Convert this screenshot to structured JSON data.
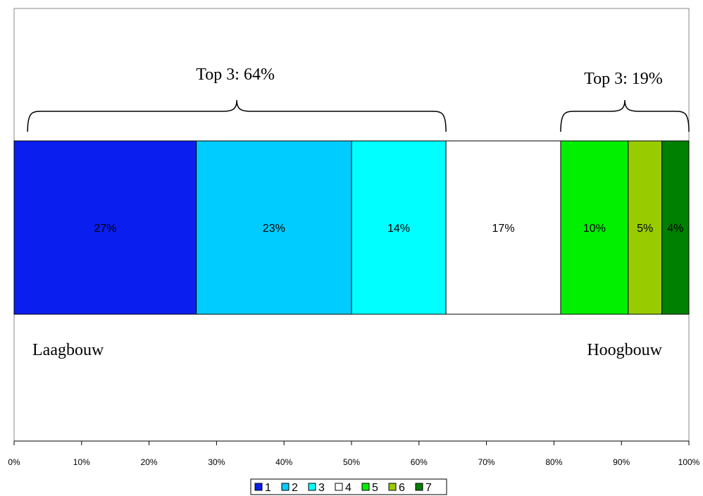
{
  "chart_data": {
    "type": "bar",
    "orientation": "horizontal",
    "stacked": "100%",
    "series": [
      {
        "name": "1",
        "value": 27,
        "label": "27%",
        "color": "#0A1EF0"
      },
      {
        "name": "2",
        "value": 23,
        "label": "23%",
        "color": "#00CCFF"
      },
      {
        "name": "3",
        "value": 14,
        "label": "14%",
        "color": "#00FFFF"
      },
      {
        "name": "4",
        "value": 17,
        "label": "17%",
        "color": "#FFFFFF"
      },
      {
        "name": "5",
        "value": 10,
        "label": "10%",
        "color": "#00F000"
      },
      {
        "name": "6",
        "value": 5,
        "label": "5%",
        "color": "#99CC00"
      },
      {
        "name": "7",
        "value": 4,
        "label": "4%",
        "color": "#008000"
      }
    ],
    "x_ticks": [
      "0%",
      "10%",
      "20%",
      "30%",
      "40%",
      "50%",
      "60%",
      "70%",
      "80%",
      "90%",
      "100%"
    ],
    "xlim": [
      0,
      100
    ],
    "grid": false,
    "legend_position": "bottom",
    "annotations": [
      {
        "name": "top3-low",
        "text": "Top 3: 64%",
        "range": [
          2,
          64
        ]
      },
      {
        "name": "top3-high",
        "text": "Top 3: 19%",
        "range": [
          81,
          100
        ]
      }
    ],
    "region_labels": [
      {
        "name": "laagbouw",
        "text": "Laagbouw",
        "side": "left"
      },
      {
        "name": "hoogbouw",
        "text": "Hoogbouw",
        "side": "right"
      }
    ]
  }
}
